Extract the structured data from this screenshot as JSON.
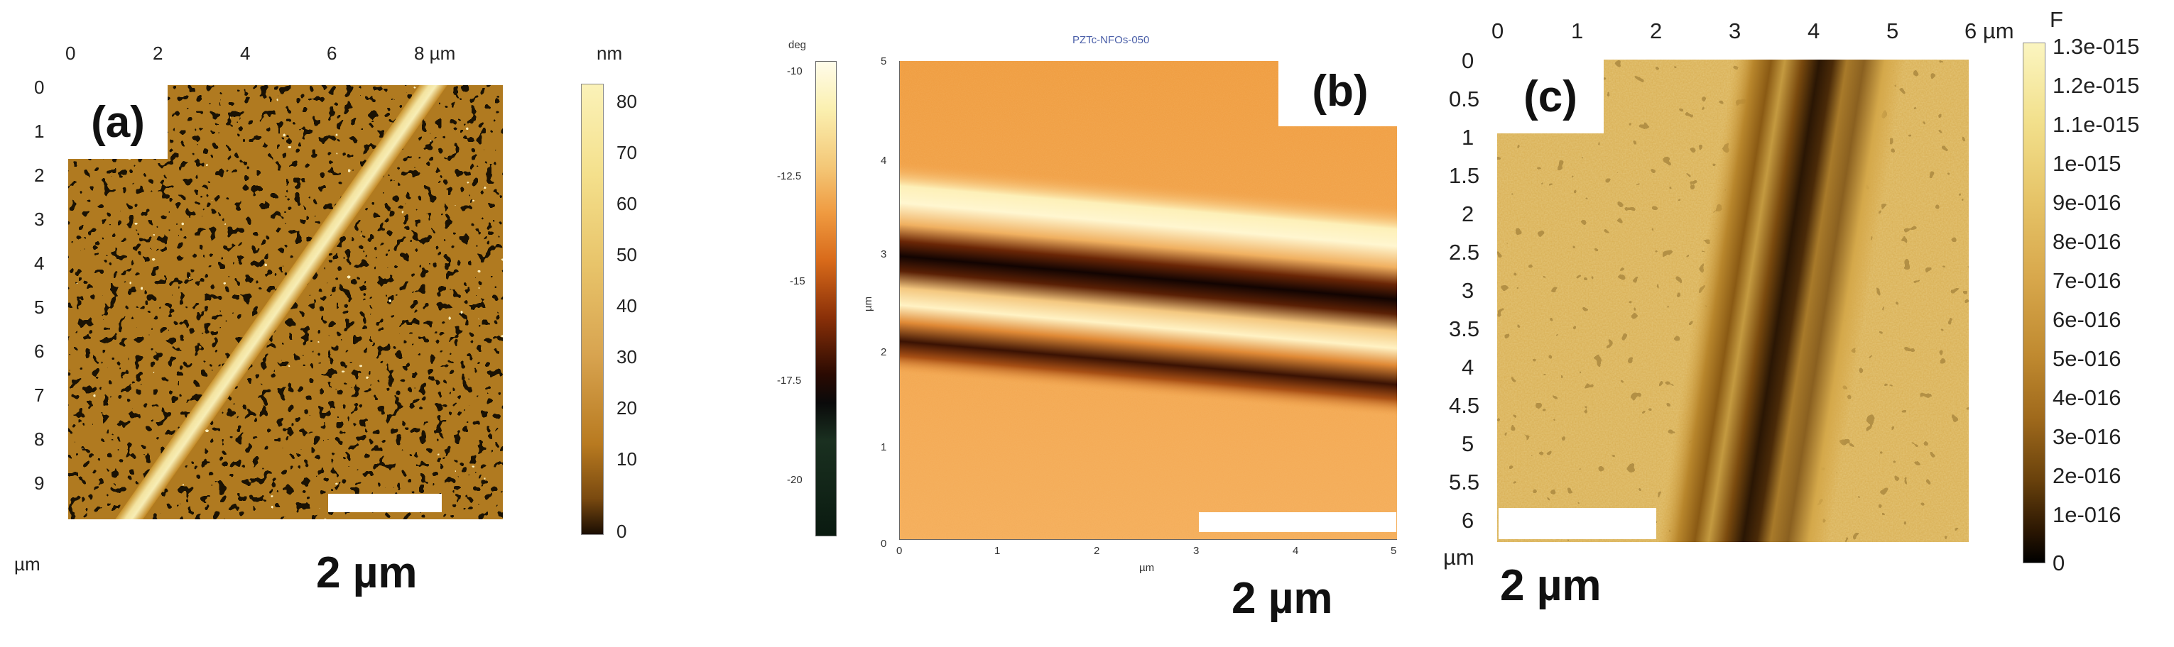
{
  "panel_a": {
    "label": "(a)",
    "x_ticks": [
      "0",
      "2",
      "4",
      "6",
      "8 µm"
    ],
    "y_ticks": [
      "0",
      "1",
      "2",
      "3",
      "4",
      "5",
      "6",
      "7",
      "8",
      "9"
    ],
    "axis_unit": "µm",
    "colorbar_unit": "nm",
    "colorbar_ticks": [
      "80",
      "70",
      "60",
      "50",
      "40",
      "30",
      "20",
      "10",
      "0"
    ],
    "scale_text": "2 µm"
  },
  "panel_b": {
    "label": "(b)",
    "title": "PZTc-NFOs-050",
    "colorbar_unit": "deg",
    "colorbar_ticks": [
      "-10",
      "-12.5",
      "-15",
      "-17.5",
      "-20"
    ],
    "y_ticks": [
      "5",
      "4",
      "3",
      "2",
      "1",
      "0"
    ],
    "y_axis_label": "µm",
    "x_ticks": [
      "0",
      "1",
      "2",
      "3",
      "4",
      "5"
    ],
    "x_axis_label": "µm",
    "scale_text": "2 µm"
  },
  "panel_c": {
    "label": "(c)",
    "x_ticks": [
      "0",
      "1",
      "2",
      "3",
      "4",
      "5",
      "6 µm"
    ],
    "y_ticks": [
      "0",
      "0.5",
      "1",
      "1.5",
      "2",
      "2.5",
      "3",
      "3.5",
      "4",
      "4.5",
      "5",
      "5.5",
      "6"
    ],
    "axis_unit": "µm",
    "colorbar_unit": "F",
    "colorbar_ticks": [
      "1.3e-015",
      "1.2e-015",
      "1.1e-015",
      "1e-015",
      "9e-016",
      "8e-016",
      "7e-016",
      "6e-016",
      "5e-016",
      "4e-016",
      "3e-016",
      "2e-016",
      "1e-016",
      "0"
    ],
    "scale_text": "2 µm"
  },
  "colors": {
    "afm_dark": "#2a1a08",
    "afm_mid": "#b07a20",
    "afm_light": "#f5e9a8",
    "phase_bg": "#f0a048",
    "scalebar": "#ffffff"
  }
}
